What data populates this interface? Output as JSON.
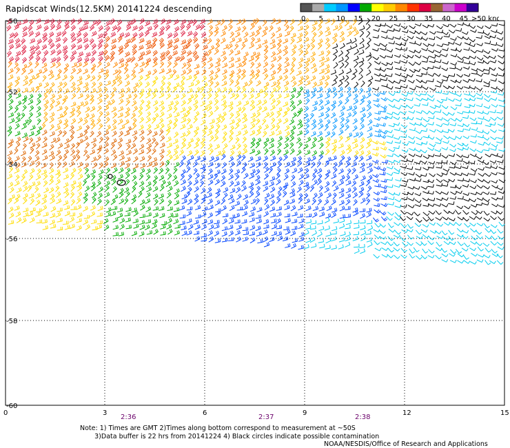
{
  "title": "Rapidscat Winds(12.5KM) 20141224 descending",
  "legend": {
    "labels": [
      "0",
      "5",
      "10",
      "15",
      "20",
      "25",
      "30",
      "35",
      "40",
      "45",
      ">50 knots"
    ],
    "colors": [
      "#555555",
      "#aaaaaa",
      "#00ccff",
      "#0096ff",
      "#0000ff",
      "#00aa00",
      "#ffff00",
      "#ffcc00",
      "#ff8800",
      "#ff3300",
      "#dd0044",
      "#996633",
      "#cc66cc",
      "#cc00cc",
      "#330099"
    ]
  },
  "axes": {
    "x_ticks": [
      "0",
      "3",
      "6",
      "9",
      "12",
      "15"
    ],
    "y_ticks": [
      "-50",
      "-52",
      "-54",
      "-56",
      "-58",
      "-60"
    ]
  },
  "times": [
    "2:36",
    "2:37",
    "2:38"
  ],
  "notes": {
    "line1": "Note: 1) Times are GMT 2)Times along bottom correspond to measurement at ~50S",
    "line2": "       3)Data buffer is 22 hrs from 20141224 4) Black circles indicate possible contamination"
  },
  "credit": "NOAA/NESDIS/Office of Research and Applications",
  "map_data": {
    "lon_range": [
      0,
      15
    ],
    "lat_range": [
      -60,
      -50
    ],
    "swath_color_zones": [
      {
        "region": "upper-left",
        "speed_knots": "30-40",
        "color": "#dd2244"
      },
      {
        "region": "left-middle",
        "speed_knots": "25-35",
        "color": "#ee7700"
      },
      {
        "region": "center",
        "speed_knots": "20-25",
        "color": "#ffdd00"
      },
      {
        "region": "lower-center",
        "speed_knots": "15-20",
        "color": "#00aa00"
      },
      {
        "region": "lower-right",
        "speed_knots": "10-15",
        "color": "#0044ff"
      },
      {
        "region": "right",
        "speed_knots": "5-10",
        "color": "#00ccee"
      },
      {
        "region": "upper-right",
        "speed_knots": "<5",
        "color": "#000000"
      }
    ]
  }
}
